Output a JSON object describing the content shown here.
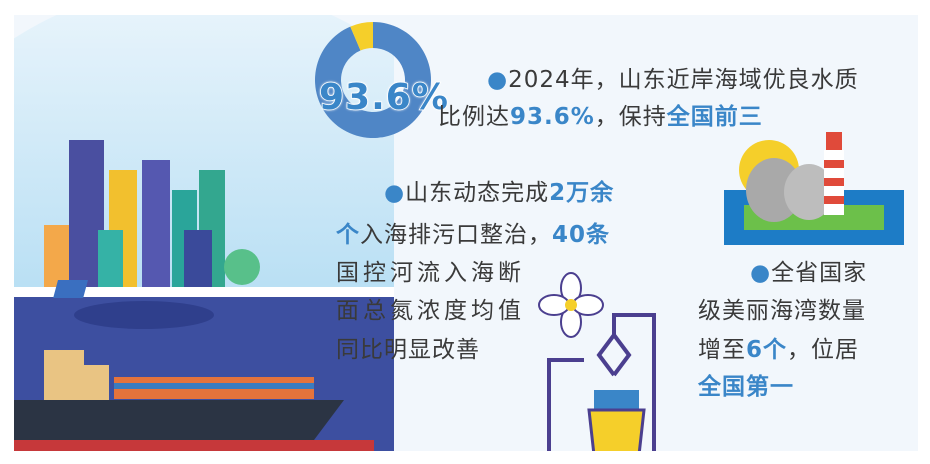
{
  "donut": {
    "label": "93.6%",
    "value_percent": 93.6,
    "main_color": "#4f86c6",
    "rest_color": "#f5cf2a"
  },
  "colors": {
    "highlight": "#3a86c8",
    "text": "#3a3a3a",
    "background": "#f2f7fc"
  },
  "para1": {
    "bullet": "●",
    "l1": "2024年，山东近岸海域优良水质",
    "l2a": "比例达",
    "l2b": "93.6%",
    "l2c": "，保持",
    "l2d": "全国前三"
  },
  "para2": {
    "bullet": "●",
    "l1a": "山东动态完成",
    "l1b": "2万余",
    "l2a": "个",
    "l2b": "入海排污口整治，",
    "l2c": "40条",
    "l3": "国控河流入海断",
    "l4": "面总氮浓度均值",
    "l5": "同比明显改善"
  },
  "para3": {
    "bullet": "●",
    "l1": "全省国家",
    "l2": "级美丽海湾数量",
    "l3a": "增至",
    "l3b": "6个",
    "l3c": "，位居",
    "l4": "全国第一"
  }
}
